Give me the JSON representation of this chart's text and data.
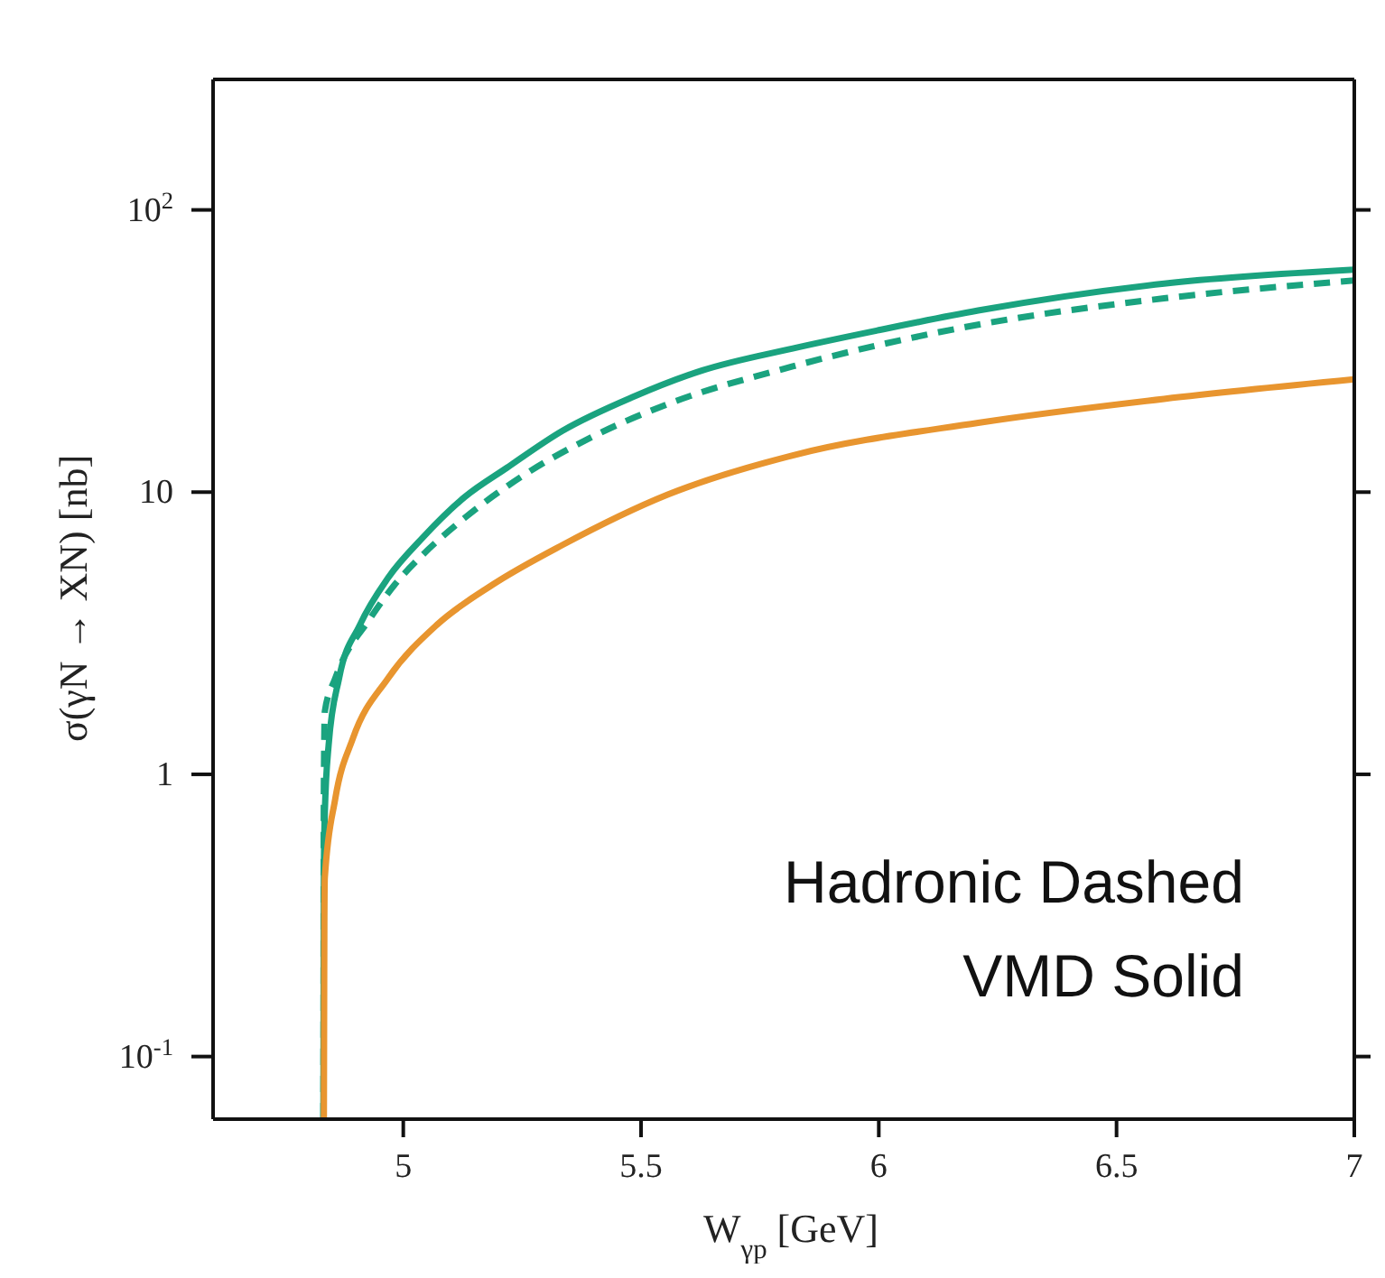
{
  "chart_data": {
    "type": "line",
    "xlabel": "W$_{γp}$  [GeV]",
    "ylabel": "σ(γN → XN)  [nb]",
    "annotations": [
      "Hadronic Dashed",
      "VMD Solid"
    ],
    "series": [
      {
        "color": "#1aa37f",
        "line_style": "solid",
        "x": [
          4.832,
          4.833,
          4.835,
          4.843,
          4.865,
          4.909,
          4.968,
          5.041,
          5.129,
          5.218,
          5.335,
          5.482,
          5.629,
          5.819,
          6.0,
          6.209,
          6.6,
          7.0
        ],
        "values": [
          0.06,
          0.45,
          0.73,
          1.27,
          2.19,
          3.39,
          4.97,
          6.9,
          9.6,
          12.2,
          16.5,
          21.7,
          27,
          32.3,
          37.5,
          44,
          54.8,
          61.4
        ]
      },
      {
        "color": "#1aa37f",
        "line_style": "dashed",
        "x": [
          4.832,
          4.833,
          4.835,
          4.857,
          4.931,
          4.982,
          5.041,
          5.129,
          5.247,
          5.394,
          5.556,
          5.819,
          6.209,
          6.6,
          7.0
        ],
        "values": [
          0.06,
          0.9,
          1.67,
          2.19,
          3.58,
          4.7,
          6.0,
          8.1,
          11.3,
          15.6,
          20.5,
          27.9,
          39.2,
          48.6,
          56.2
        ]
      },
      {
        "color": "#e8952f",
        "line_style": "solid",
        "x": [
          4.833,
          4.834,
          4.835,
          4.857,
          4.894,
          4.968,
          5.071,
          5.188,
          5.335,
          5.556,
          5.819,
          6.209,
          6.6,
          7.0
        ],
        "values": [
          0.06,
          0.3,
          0.43,
          0.82,
          1.34,
          2.19,
          3.39,
          4.7,
          6.5,
          9.8,
          13.5,
          17.6,
          21.4,
          25.1
        ]
      }
    ],
    "xlim": [
      4.6,
      7
    ],
    "xticks": [
      5,
      5.5,
      6,
      6.5,
      7
    ],
    "ylim": [
      0.06,
      290
    ],
    "yticks": [
      {
        "value": 0.1,
        "label": "10$^{-1}$"
      },
      1,
      10,
      {
        "value": 100,
        "label": "10$^{2}$"
      }
    ],
    "log": "y",
    "marker": "none"
  }
}
